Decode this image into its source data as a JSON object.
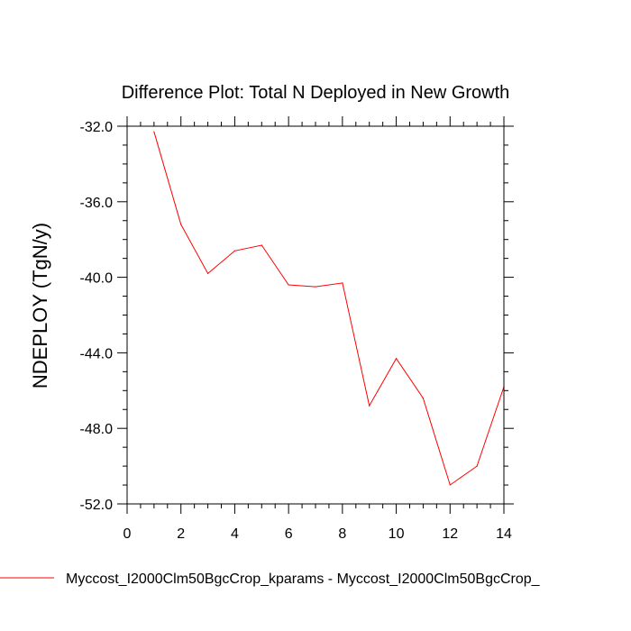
{
  "chart_data": {
    "type": "line",
    "title": "Difference Plot: Total N Deployed in New Growth",
    "xlabel": "",
    "ylabel": "NDEPLOY  (TgN/y)",
    "xlim": [
      0,
      14
    ],
    "ylim": [
      -52,
      -32
    ],
    "x_ticks": [
      0,
      2,
      4,
      6,
      8,
      10,
      12,
      14
    ],
    "x_tick_labels": [
      "0",
      "2",
      "4",
      "6",
      "8",
      "10",
      "12",
      "14"
    ],
    "y_ticks": [
      -52,
      -48,
      -44,
      -40,
      -36,
      -32
    ],
    "y_tick_labels": [
      "-52.0",
      "-48.0",
      "-44.0",
      "-40.0",
      "-36.0",
      "-32.0"
    ],
    "series": [
      {
        "name": "Myccost_I2000Clm50BgcCrop_kparams - Myccost_I2000Clm50BgcCrop_",
        "color": "#ff0000",
        "x": [
          1,
          2,
          3,
          4,
          5,
          6,
          7,
          8,
          9,
          10,
          11,
          12,
          13,
          14
        ],
        "values": [
          -32.3,
          -37.2,
          -39.8,
          -38.6,
          -38.3,
          -40.4,
          -40.5,
          -40.3,
          -46.8,
          -44.3,
          -46.4,
          -51.0,
          -50.0,
          -45.8
        ]
      }
    ],
    "legend_position": "bottom"
  }
}
